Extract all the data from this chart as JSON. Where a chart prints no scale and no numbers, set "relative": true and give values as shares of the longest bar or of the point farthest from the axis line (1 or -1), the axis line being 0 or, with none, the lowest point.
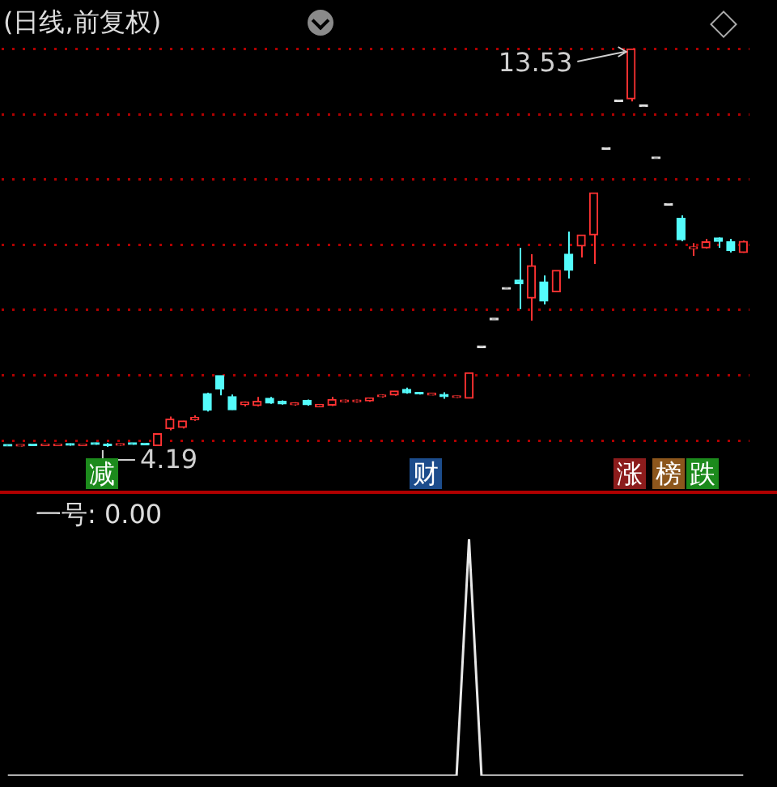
{
  "chart_data": [
    {
      "type": "candlestick",
      "title": "(日线,前复权)",
      "categories": [
        null,
        null,
        null,
        null,
        null,
        null,
        null,
        null,
        null,
        null,
        null,
        null,
        null,
        null,
        null,
        null,
        null,
        null,
        null,
        null,
        null,
        null,
        null,
        null,
        null,
        null,
        null,
        null,
        null,
        null,
        null,
        null,
        null,
        null,
        null,
        null,
        null,
        null,
        null,
        null,
        null,
        null,
        null,
        null,
        null,
        null,
        null,
        null,
        null,
        null,
        null,
        null,
        null,
        null,
        null,
        null,
        null,
        null,
        null,
        null
      ],
      "ohlc": [
        [
          4.23,
          4.24,
          4.21,
          4.21
        ],
        [
          4.21,
          4.24,
          4.2,
          4.23
        ],
        [
          4.23,
          4.24,
          4.21,
          4.22
        ],
        [
          4.22,
          4.25,
          4.21,
          4.24
        ],
        [
          4.22,
          4.25,
          4.21,
          4.24
        ],
        [
          4.26,
          4.27,
          4.22,
          4.23
        ],
        [
          4.22,
          4.26,
          4.21,
          4.25
        ],
        [
          4.27,
          4.29,
          4.24,
          4.25
        ],
        [
          4.24,
          4.28,
          4.19,
          4.22
        ],
        [
          4.23,
          4.27,
          4.22,
          4.26
        ],
        [
          4.27,
          4.28,
          4.24,
          4.25
        ],
        [
          4.26,
          4.28,
          4.23,
          4.24
        ],
        [
          4.22,
          4.5,
          4.21,
          4.5
        ],
        [
          4.62,
          4.9,
          4.58,
          4.84
        ],
        [
          4.65,
          4.8,
          4.62,
          4.8
        ],
        [
          4.83,
          4.93,
          4.8,
          4.88
        ],
        [
          5.44,
          5.46,
          5.02,
          5.05
        ],
        [
          5.86,
          5.86,
          5.4,
          5.55
        ],
        [
          5.37,
          5.42,
          5.06,
          5.06
        ],
        [
          5.18,
          5.26,
          5.14,
          5.24
        ],
        [
          5.16,
          5.36,
          5.14,
          5.26
        ],
        [
          5.33,
          5.36,
          5.2,
          5.22
        ],
        [
          5.26,
          5.28,
          5.18,
          5.2
        ],
        [
          5.18,
          5.24,
          5.16,
          5.22
        ],
        [
          5.28,
          5.3,
          5.16,
          5.18
        ],
        [
          5.13,
          5.19,
          5.12,
          5.19
        ],
        [
          5.17,
          5.36,
          5.15,
          5.3
        ],
        [
          5.25,
          5.3,
          5.23,
          5.29
        ],
        [
          5.25,
          5.3,
          5.23,
          5.29
        ],
        [
          5.27,
          5.34,
          5.25,
          5.34
        ],
        [
          5.37,
          5.42,
          5.35,
          5.4
        ],
        [
          5.41,
          5.5,
          5.39,
          5.5
        ],
        [
          5.54,
          5.58,
          5.44,
          5.46
        ],
        [
          5.45,
          5.47,
          5.42,
          5.43
        ],
        [
          5.41,
          5.43,
          5.4,
          5.42
        ],
        [
          5.42,
          5.47,
          5.32,
          5.37
        ],
        [
          5.35,
          5.39,
          5.34,
          5.38
        ],
        [
          5.33,
          5.93,
          5.33,
          5.93
        ],
        [
          6.52,
          6.52,
          6.52,
          6.52
        ],
        [
          7.17,
          7.17,
          7.17,
          7.17
        ],
        [
          7.89,
          7.89,
          7.89,
          7.89
        ],
        [
          8.1,
          8.86,
          7.42,
          8.02
        ],
        [
          7.68,
          8.71,
          7.15,
          8.44
        ],
        [
          8.06,
          8.21,
          7.53,
          7.61
        ],
        [
          7.83,
          8.33,
          7.83,
          8.33
        ],
        [
          8.71,
          9.24,
          8.14,
          8.33
        ],
        [
          8.9,
          9.16,
          8.63,
          9.16
        ],
        [
          9.16,
          10.15,
          8.48,
          10.15
        ],
        [
          11.17,
          11.17,
          11.17,
          11.17
        ],
        [
          12.29,
          12.29,
          12.29,
          12.29
        ],
        [
          12.35,
          13.53,
          12.29,
          13.52
        ],
        [
          12.17,
          12.17,
          12.17,
          12.17
        ],
        [
          10.95,
          10.95,
          10.95,
          10.95
        ],
        [
          9.86,
          9.86,
          9.86,
          9.86
        ],
        [
          9.55,
          9.62,
          9.01,
          9.05
        ],
        [
          8.84,
          8.97,
          8.67,
          8.88
        ],
        [
          8.86,
          9.07,
          8.84,
          9.0
        ],
        [
          9.09,
          9.1,
          8.86,
          9.01
        ],
        [
          9.0,
          9.07,
          8.75,
          8.79
        ],
        [
          8.75,
          9.03,
          8.74,
          9.01
        ]
      ],
      "yticks": [
        {
          "value": 4.34,
          "label": null
        },
        {
          "value": 5.87,
          "label": null
        },
        {
          "value": 7.4,
          "label": null
        },
        {
          "value": 8.93,
          "label": null
        },
        {
          "value": 10.46,
          "label": null
        },
        {
          "value": 11.99,
          "label": null
        },
        {
          "value": 13.52,
          "label": null
        }
      ],
      "grid": "y",
      "tick_labels": false,
      "legend": false,
      "annotations": [
        "13.53",
        "4.19",
        "减",
        "财",
        "涨",
        "榜",
        "跌"
      ]
    },
    {
      "type": "line",
      "title": "一号: 0.00",
      "categories": [
        null,
        null,
        null,
        null,
        null,
        null,
        null,
        null,
        null,
        null,
        null,
        null,
        null,
        null,
        null,
        null,
        null,
        null,
        null,
        null,
        null,
        null,
        null,
        null,
        null,
        null,
        null,
        null,
        null,
        null,
        null,
        null,
        null,
        null,
        null,
        null,
        null,
        null,
        null,
        null,
        null,
        null,
        null,
        null,
        null,
        null,
        null,
        null,
        null,
        null,
        null,
        null,
        null,
        null,
        null,
        null,
        null,
        null,
        null,
        null
      ],
      "values": [
        0,
        0,
        0,
        0,
        0,
        0,
        0,
        0,
        0,
        0,
        0,
        0,
        0,
        0,
        0,
        0,
        0,
        0,
        0,
        0,
        0,
        0,
        0,
        0,
        0,
        0,
        0,
        0,
        0,
        0,
        0,
        0,
        0,
        0,
        0,
        0,
        0,
        1,
        0,
        0,
        0,
        0,
        0,
        0,
        0,
        0,
        0,
        0,
        0,
        0,
        0,
        0,
        0,
        0,
        0,
        0,
        0,
        0,
        0,
        0
      ],
      "color": "#e8e8e8",
      "relative": true,
      "marker": "none",
      "legend": false,
      "tick_labels": false
    }
  ]
}
